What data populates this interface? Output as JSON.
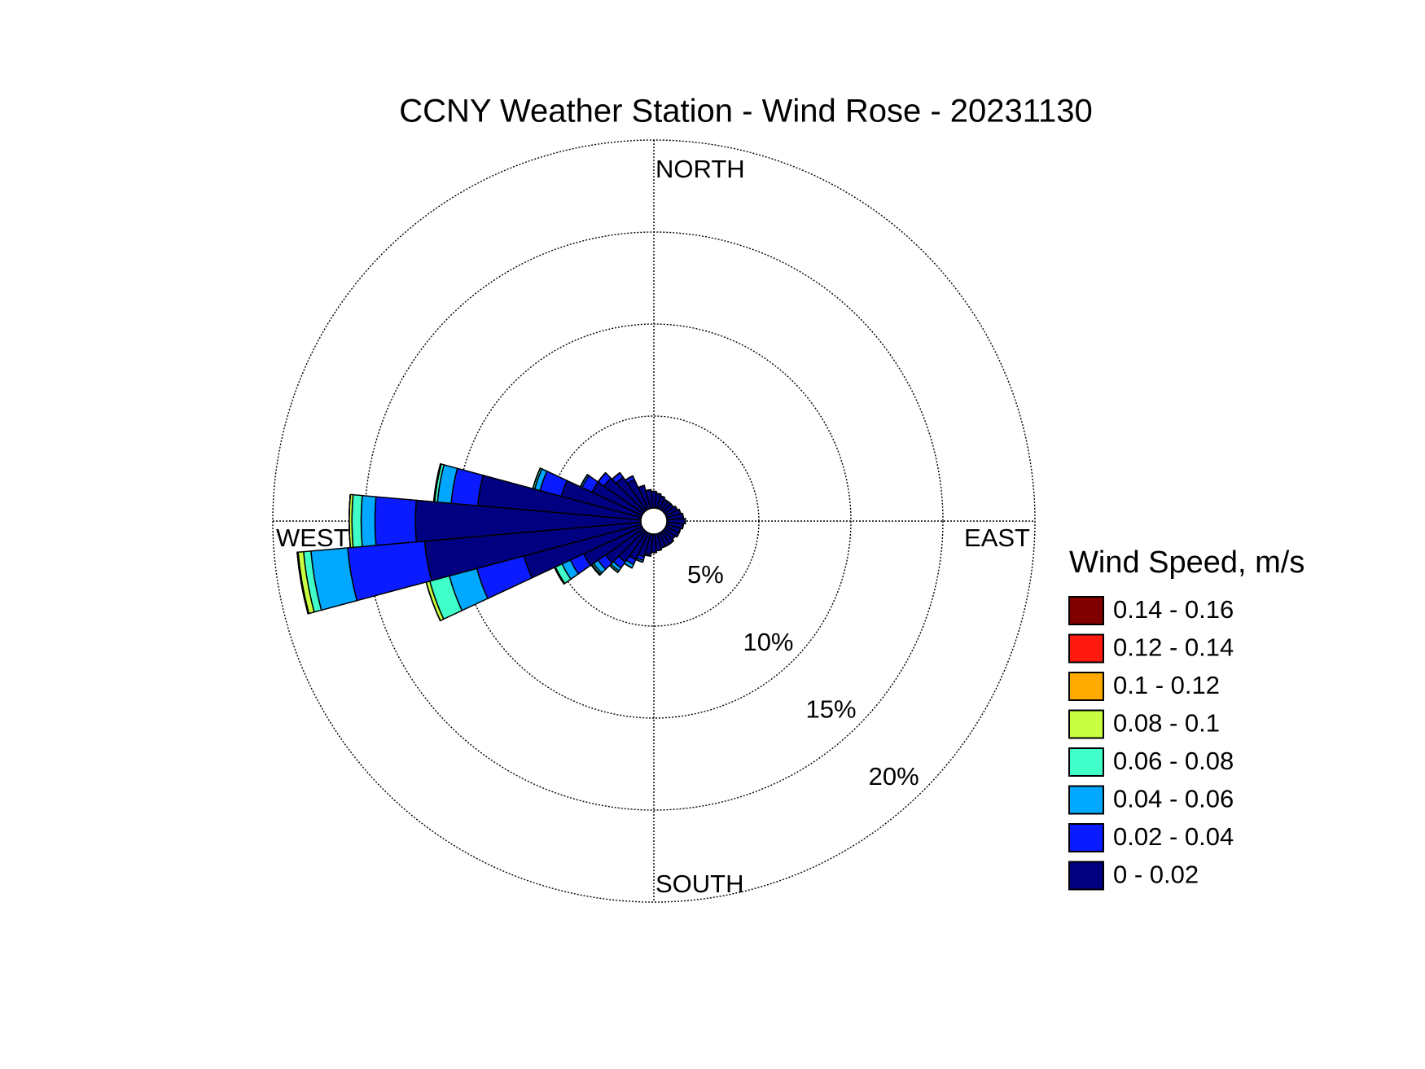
{
  "chart_data": {
    "type": "windrose",
    "title": "CCNY Weather Station - Wind Rose - 20231130",
    "directions_labels": [
      "NORTH",
      "EAST",
      "SOUTH",
      "WEST"
    ],
    "legend_title": "Wind Speed, m/s",
    "rlim": [
      0,
      20
    ],
    "rticks": [
      {
        "value": 5,
        "label": "5%"
      },
      {
        "value": 10,
        "label": "10%"
      },
      {
        "value": 15,
        "label": "15%"
      },
      {
        "value": 20,
        "label": "20%"
      }
    ],
    "series": [
      {
        "name": "0 - 0.02",
        "color": "#000080",
        "values": [
          0.9,
          0.8,
          0.7,
          0.6,
          0.6,
          0.6,
          0.7,
          0.8,
          0.9,
          1.0,
          0.9,
          0.8,
          0.8,
          0.7,
          0.8,
          0.8,
          0.8,
          0.9,
          1.0,
          1.1,
          1.3,
          1.6,
          2.0,
          2.5,
          3.5,
          6.6,
          11.8,
          12.25,
          8.9,
          4.5,
          3.0,
          2.6,
          2.2,
          1.8,
          1.3,
          1.0
        ]
      },
      {
        "name": "0.02 - 0.04",
        "color": "#0a1cff",
        "values": [
          0,
          0,
          0,
          0,
          0,
          0,
          0,
          0,
          0,
          0,
          0,
          0,
          0,
          0,
          0,
          0,
          0,
          0,
          0,
          0.1,
          0.2,
          0.3,
          0.4,
          0.5,
          0.8,
          2.65,
          4.2,
          2.2,
          1.45,
          1.2,
          0.6,
          0.4,
          0.3,
          0.2,
          0,
          0
        ]
      },
      {
        "name": "0.04 - 0.06",
        "color": "#00a8ff",
        "values": [
          0,
          0,
          0,
          0,
          0,
          0,
          0,
          0,
          0,
          0,
          0,
          0,
          0,
          0,
          0,
          0,
          0,
          0,
          0,
          0,
          0.1,
          0.2,
          0.2,
          0.3,
          0.5,
          1.55,
          2.0,
          0.75,
          0.75,
          0.3,
          0.1,
          0,
          0,
          0,
          0,
          0
        ]
      },
      {
        "name": "0.06 - 0.08",
        "color": "#40ffc8",
        "values": [
          0,
          0,
          0,
          0,
          0,
          0,
          0,
          0,
          0,
          0,
          0,
          0,
          0,
          0,
          0,
          0,
          0,
          0,
          0,
          0,
          0,
          0,
          0.1,
          0.1,
          0.4,
          1.1,
          0.4,
          0.5,
          0.15,
          0.1,
          0,
          0,
          0,
          0,
          0,
          0
        ]
      },
      {
        "name": "0.08 - 0.1",
        "color": "#c8ff40",
        "values": [
          0,
          0,
          0,
          0,
          0,
          0,
          0,
          0,
          0,
          0,
          0,
          0,
          0,
          0,
          0,
          0,
          0,
          0,
          0,
          0,
          0,
          0,
          0,
          0,
          0.05,
          0.2,
          0.3,
          0.15,
          0.05,
          0,
          0,
          0,
          0,
          0,
          0,
          0
        ]
      },
      {
        "name": "0.1 - 0.12",
        "color": "#ffaa00",
        "values": [
          0,
          0,
          0,
          0,
          0,
          0,
          0,
          0,
          0,
          0,
          0,
          0,
          0,
          0,
          0,
          0,
          0,
          0,
          0,
          0,
          0,
          0,
          0,
          0.05,
          0,
          0,
          0.05,
          0,
          0,
          0,
          0,
          0,
          0,
          0,
          0,
          0
        ]
      },
      {
        "name": "0.12 - 0.14",
        "color": "#ff1a10",
        "values": [
          0,
          0,
          0,
          0,
          0,
          0,
          0,
          0,
          0,
          0,
          0,
          0,
          0,
          0,
          0,
          0,
          0,
          0,
          0,
          0,
          0,
          0,
          0,
          0,
          0,
          0,
          0,
          0,
          0,
          0,
          0,
          0,
          0,
          0,
          0,
          0
        ]
      },
      {
        "name": "0.14 - 0.16",
        "color": "#800000",
        "values": [
          0,
          0,
          0,
          0,
          0,
          0,
          0,
          0,
          0,
          0,
          0,
          0,
          0,
          0,
          0,
          0,
          0,
          0,
          0,
          0,
          0,
          0,
          0,
          0,
          0,
          0,
          0,
          0,
          0,
          0,
          0,
          0,
          0,
          0,
          0,
          0
        ]
      }
    ]
  }
}
